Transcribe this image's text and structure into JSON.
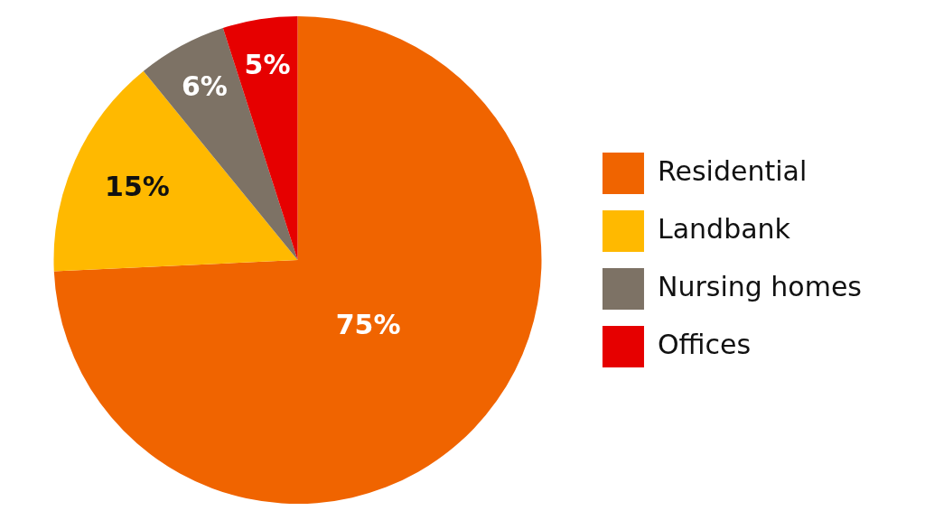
{
  "chart_data": {
    "type": "pie",
    "categories": [
      "Residential",
      "Landbank",
      "Nursing homes",
      "Offices"
    ],
    "values": [
      75,
      15,
      6,
      5
    ],
    "colors": [
      "#f06400",
      "#ffb900",
      "#7d7265",
      "#e60000"
    ],
    "value_labels": [
      "75%",
      "15%",
      "6%",
      "5%"
    ],
    "legend": "right"
  }
}
